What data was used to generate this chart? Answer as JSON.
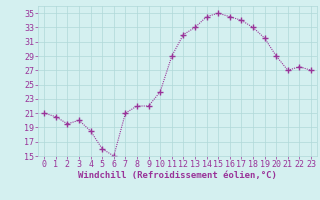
{
  "x": [
    0,
    1,
    2,
    3,
    4,
    5,
    6,
    7,
    8,
    9,
    10,
    11,
    12,
    13,
    14,
    15,
    16,
    17,
    18,
    19,
    20,
    21,
    22,
    23
  ],
  "y": [
    21,
    20.5,
    19.5,
    20,
    18.5,
    16,
    15,
    21,
    22,
    22,
    24,
    29,
    32,
    33,
    34.5,
    35,
    34.5,
    34,
    33,
    31.5,
    29,
    27,
    27.5,
    27
  ],
  "line_color": "#993399",
  "marker": "+",
  "marker_size": 4,
  "line_width": 0.8,
  "bg_color": "#d4f0f0",
  "grid_color": "#b0d8d8",
  "xlabel": "Windchill (Refroidissement éolien,°C)",
  "xlabel_fontsize": 6.5,
  "tick_fontsize": 6,
  "ylim": [
    15,
    36
  ],
  "yticks": [
    15,
    17,
    19,
    21,
    23,
    25,
    27,
    29,
    31,
    33,
    35
  ],
  "xticks": [
    0,
    1,
    2,
    3,
    4,
    5,
    6,
    7,
    8,
    9,
    10,
    11,
    12,
    13,
    14,
    15,
    16,
    17,
    18,
    19,
    20,
    21,
    22,
    23
  ],
  "axis_color": "#993399",
  "xlim": [
    -0.5,
    23.5
  ]
}
